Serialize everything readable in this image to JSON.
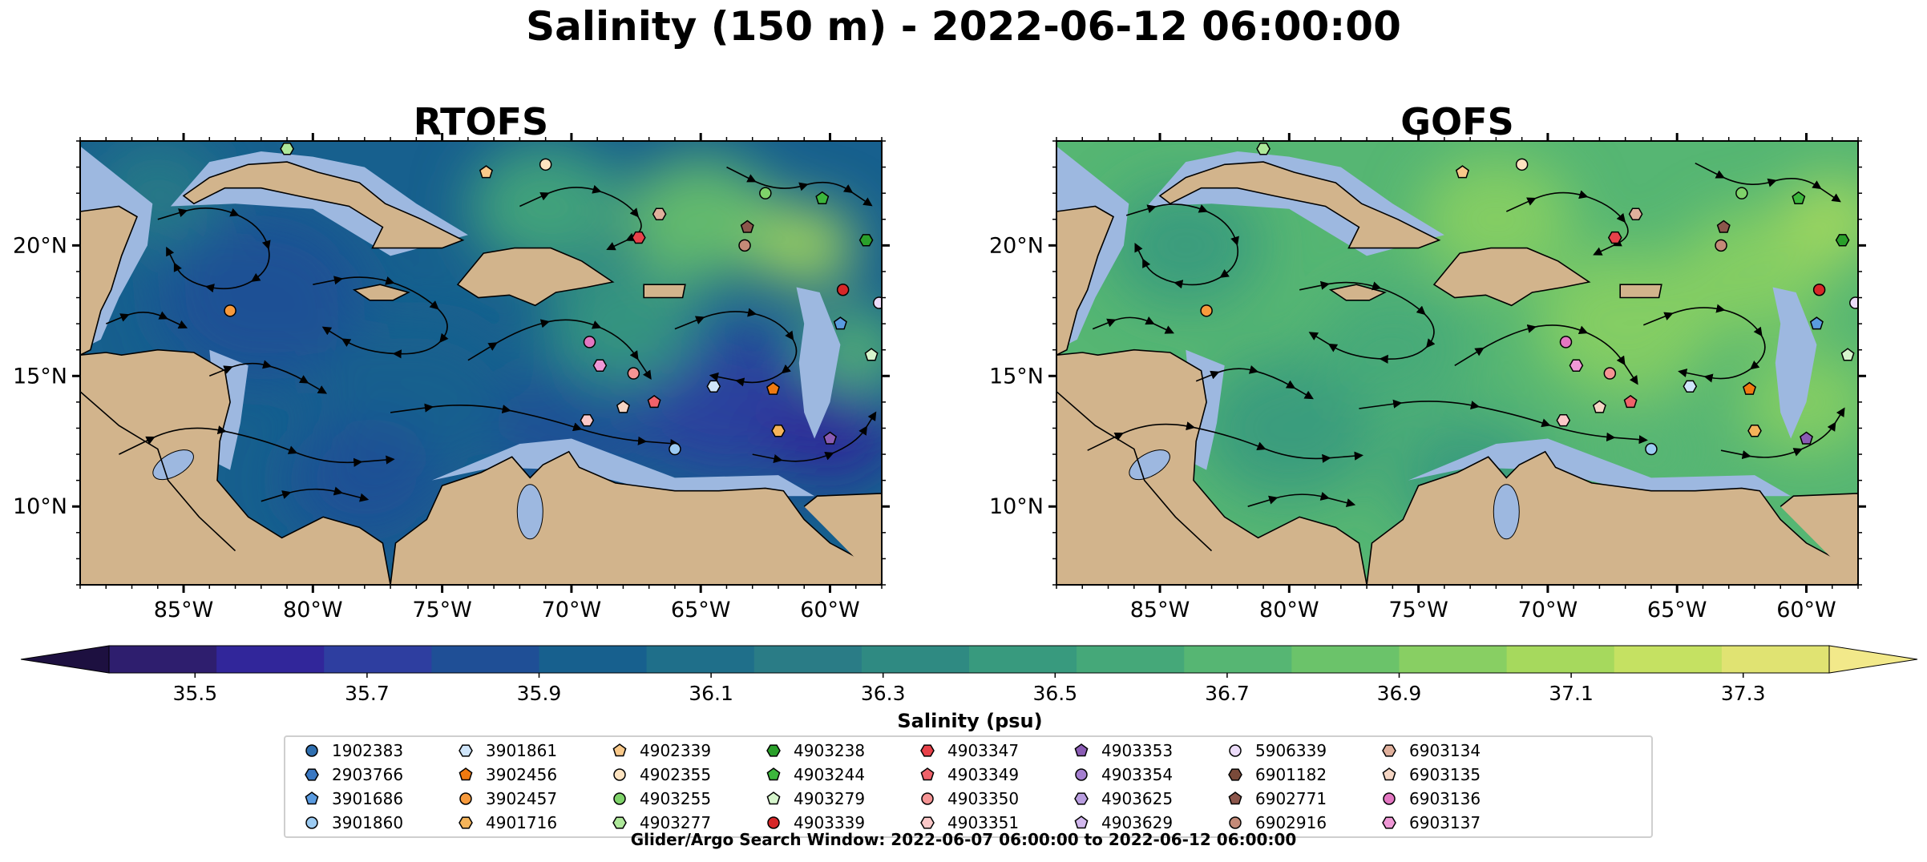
{
  "chart_data": {
    "type": "heatmap",
    "title": "Salinity (150 m) - 2022-06-12 06:00:00",
    "panels": [
      {
        "title": "RTOFS",
        "model": "rtofs"
      },
      {
        "title": "GOFS",
        "model": "gofs"
      }
    ],
    "map_extent": {
      "lon": [
        -89,
        -58
      ],
      "lat": [
        7,
        24
      ]
    },
    "xticks": [
      -85,
      -80,
      -75,
      -70,
      -65,
      -60
    ],
    "xtick_labels": [
      "85°W",
      "80°W",
      "75°W",
      "70°W",
      "65°W",
      "60°W"
    ],
    "yticks": [
      10,
      15,
      20
    ],
    "ytick_labels": [
      "10°N",
      "15°N",
      "20°N"
    ],
    "colorbar": {
      "label": "Salinity (psu)",
      "range": [
        35.4,
        37.4
      ],
      "tick_values": [
        35.5,
        35.7,
        35.9,
        36.1,
        36.3,
        36.5,
        36.7,
        36.9,
        37.1,
        37.3
      ],
      "tick_labels": [
        "35.5",
        "35.7",
        "35.9",
        "36.1",
        "36.3",
        "36.5",
        "36.7",
        "36.9",
        "37.1",
        "37.3"
      ],
      "extend": "both",
      "colors": [
        "#2e1e6e",
        "#31269a",
        "#2e3ea0",
        "#1f4f96",
        "#17608e",
        "#1f6f8a",
        "#2a7c86",
        "#2f8a82",
        "#389a7e",
        "#45a879",
        "#56b673",
        "#6bc36a",
        "#88cf63",
        "#a6d95d",
        "#c5e162",
        "#e0e372"
      ]
    },
    "land_color": "#d2b48c",
    "shelf_color": "#9db8e0",
    "floats": [
      {
        "id": "1902383",
        "marker": "circle",
        "color": "#2f6fb0",
        "lon": null,
        "lat": null
      },
      {
        "id": "2903766",
        "marker": "hexagon",
        "color": "#3a78c2",
        "lon": null,
        "lat": null
      },
      {
        "id": "3901686",
        "marker": "pentagon",
        "color": "#5a9be0",
        "lon": -59.6,
        "lat": 17.0
      },
      {
        "id": "3901860",
        "marker": "circle",
        "color": "#9ccbf2",
        "lon": -66.0,
        "lat": 12.2
      },
      {
        "id": "3901861",
        "marker": "hexagon",
        "color": "#cfe5fa",
        "lon": -64.5,
        "lat": 14.6
      },
      {
        "id": "3902456",
        "marker": "pentagon",
        "color": "#f07a10",
        "lon": -62.2,
        "lat": 14.5
      },
      {
        "id": "3902457",
        "marker": "circle",
        "color": "#f79a3c",
        "lon": -83.2,
        "lat": 17.5
      },
      {
        "id": "4901716",
        "marker": "hexagon",
        "color": "#f5b45a",
        "lon": -62.0,
        "lat": 12.9
      },
      {
        "id": "4902339",
        "marker": "pentagon",
        "color": "#f9c98a",
        "lon": -73.3,
        "lat": 22.8
      },
      {
        "id": "4902355",
        "marker": "circle",
        "color": "#fde3c0",
        "lon": -71.0,
        "lat": 23.1
      },
      {
        "id": "4903255",
        "marker": "circle",
        "color": "#7fd36a",
        "lon": -62.5,
        "lat": 22.0
      },
      {
        "id": "4903277",
        "marker": "hexagon",
        "color": "#aee89a",
        "lon": -81.0,
        "lat": 23.7
      },
      {
        "id": "4903238",
        "marker": "hexagon",
        "color": "#2aa02a",
        "lon": -58.6,
        "lat": 20.2
      },
      {
        "id": "4903244",
        "marker": "pentagon",
        "color": "#3cb63c",
        "lon": -60.3,
        "lat": 21.8
      },
      {
        "id": "4903279",
        "marker": "pentagon",
        "color": "#d6f5cc",
        "lon": -58.4,
        "lat": 15.8
      },
      {
        "id": "4903339",
        "marker": "circle",
        "color": "#d62728",
        "lon": -59.5,
        "lat": 18.3
      },
      {
        "id": "4903347",
        "marker": "hexagon",
        "color": "#e8424a",
        "lon": -67.4,
        "lat": 20.3
      },
      {
        "id": "4903349",
        "marker": "pentagon",
        "color": "#f0626a",
        "lon": -66.8,
        "lat": 14.0
      },
      {
        "id": "4903350",
        "marker": "circle",
        "color": "#f59494",
        "lon": -67.6,
        "lat": 15.1
      },
      {
        "id": "4903351",
        "marker": "hexagon",
        "color": "#fbc8c8",
        "lon": -69.4,
        "lat": 13.3
      },
      {
        "id": "4903353",
        "marker": "pentagon",
        "color": "#8a5cb4",
        "lon": -60.0,
        "lat": 12.6
      },
      {
        "id": "4903354",
        "marker": "circle",
        "color": "#a57fd0",
        "lon": null,
        "lat": null
      },
      {
        "id": "4903625",
        "marker": "hexagon",
        "color": "#b99ee0",
        "lon": null,
        "lat": null
      },
      {
        "id": "4903629",
        "marker": "pentagon",
        "color": "#d2b8ee",
        "lon": null,
        "lat": null
      },
      {
        "id": "5906339",
        "marker": "circle",
        "color": "#ecdcfa",
        "lon": -58.1,
        "lat": 17.8
      },
      {
        "id": "6901182",
        "marker": "hexagon",
        "color": "#7a4a3a",
        "lon": null,
        "lat": null
      },
      {
        "id": "6902771",
        "marker": "pentagon",
        "color": "#8c564b",
        "lon": -63.2,
        "lat": 20.7
      },
      {
        "id": "6902916",
        "marker": "circle",
        "color": "#c48a78",
        "lon": -63.3,
        "lat": 20.0
      },
      {
        "id": "6903134",
        "marker": "hexagon",
        "color": "#e0b09c",
        "lon": -66.6,
        "lat": 21.2
      },
      {
        "id": "6903135",
        "marker": "pentagon",
        "color": "#f5d6c4",
        "lon": -68.0,
        "lat": 13.8
      },
      {
        "id": "6903136",
        "marker": "circle",
        "color": "#e377c2",
        "lon": -69.3,
        "lat": 16.3
      },
      {
        "id": "6903137",
        "marker": "hexagon",
        "color": "#ef98d6",
        "lon": -68.9,
        "lat": 15.4
      }
    ],
    "legend_columns": 9,
    "subtitle": "Glider/Argo Search Window: 2022-06-07 06:00:00 to 2022-06-12 06:00:00",
    "legend_placement": "bottom-center"
  }
}
